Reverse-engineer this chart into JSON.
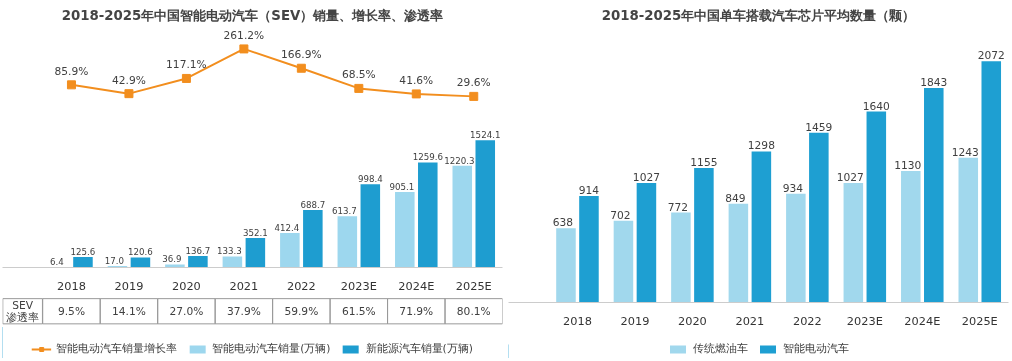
{
  "chart_data": [
    {
      "type": "line",
      "title": "2018-2025年中国智能电动汽车（SEV）销量、增长率、渗透率",
      "categories": [
        null,
        null,
        null,
        null,
        null,
        null,
        null,
        null
      ],
      "series": [
        {
          "name": "智能电动汽车销量增长率",
          "marker": "square",
          "color": "#f28e1e",
          "values": [
            85.9,
            42.9,
            117.1,
            261.2,
            166.9,
            68.5,
            41.6,
            29.6
          ],
          "value_labels": [
            "85.9%",
            "42.9%",
            "117.1%",
            "261.2%",
            "166.9%",
            "68.5%",
            "41.6%",
            "29.6%"
          ]
        }
      ],
      "tick_labels": false,
      "grid": false
    },
    {
      "type": "bar",
      "categories": [
        "2018",
        "2019",
        "2020",
        "2021",
        "2022",
        "2023E",
        "2024E",
        "2025E"
      ],
      "series": [
        {
          "name": "智能电动汽车销量(万辆)",
          "color": "#9dd7ee",
          "values": [
            6.4,
            17.0,
            36.9,
            133.3,
            412.4,
            613.7,
            905.1,
            1220.3
          ],
          "value_labels": [
            "6.4",
            "17.0",
            "36.9",
            "133.3",
            "412.4",
            "613.7",
            "905.1",
            "1220.3"
          ]
        },
        {
          "name": "新能源汽车销量(万辆)",
          "color": "#1e9dd0",
          "values": [
            125.6,
            120.6,
            136.7,
            352.1,
            688.7,
            998.4,
            1259.6,
            1524.1
          ],
          "value_labels": [
            "125.6",
            "120.6",
            "136.7",
            "352.1",
            "688.7",
            "998.4",
            "1259.6",
            "1524.1"
          ]
        }
      ],
      "tick_labels": "x",
      "grid": false,
      "legend": "bottom",
      "annotations": [
        "SEV",
        "渗透率",
        "9.5%",
        "14.1%",
        "27.0%",
        "37.9%",
        "59.9%",
        "61.5%",
        "71.9%",
        "80.1%"
      ]
    },
    {
      "type": "bar",
      "title": "2018-2025年中国单车搭载汽车芯片平均数量（颗）",
      "categories": [
        "2018",
        "2019",
        "2020",
        "2021",
        "2022",
        "2023E",
        "2024E",
        "2025E"
      ],
      "series": [
        {
          "name": "传统燃油车",
          "color": "#a1d8ed",
          "values": [
            638,
            702,
            772,
            849,
            934,
            1027,
            1130,
            1243
          ]
        },
        {
          "name": "智能电动汽车",
          "color": "#1e9fd2",
          "values": [
            914,
            1027,
            1155,
            1298,
            1459,
            1640,
            1843,
            2072
          ]
        }
      ],
      "tick_labels": "x",
      "grid": false,
      "legend": "bottom",
      "data_labels": true
    }
  ]
}
